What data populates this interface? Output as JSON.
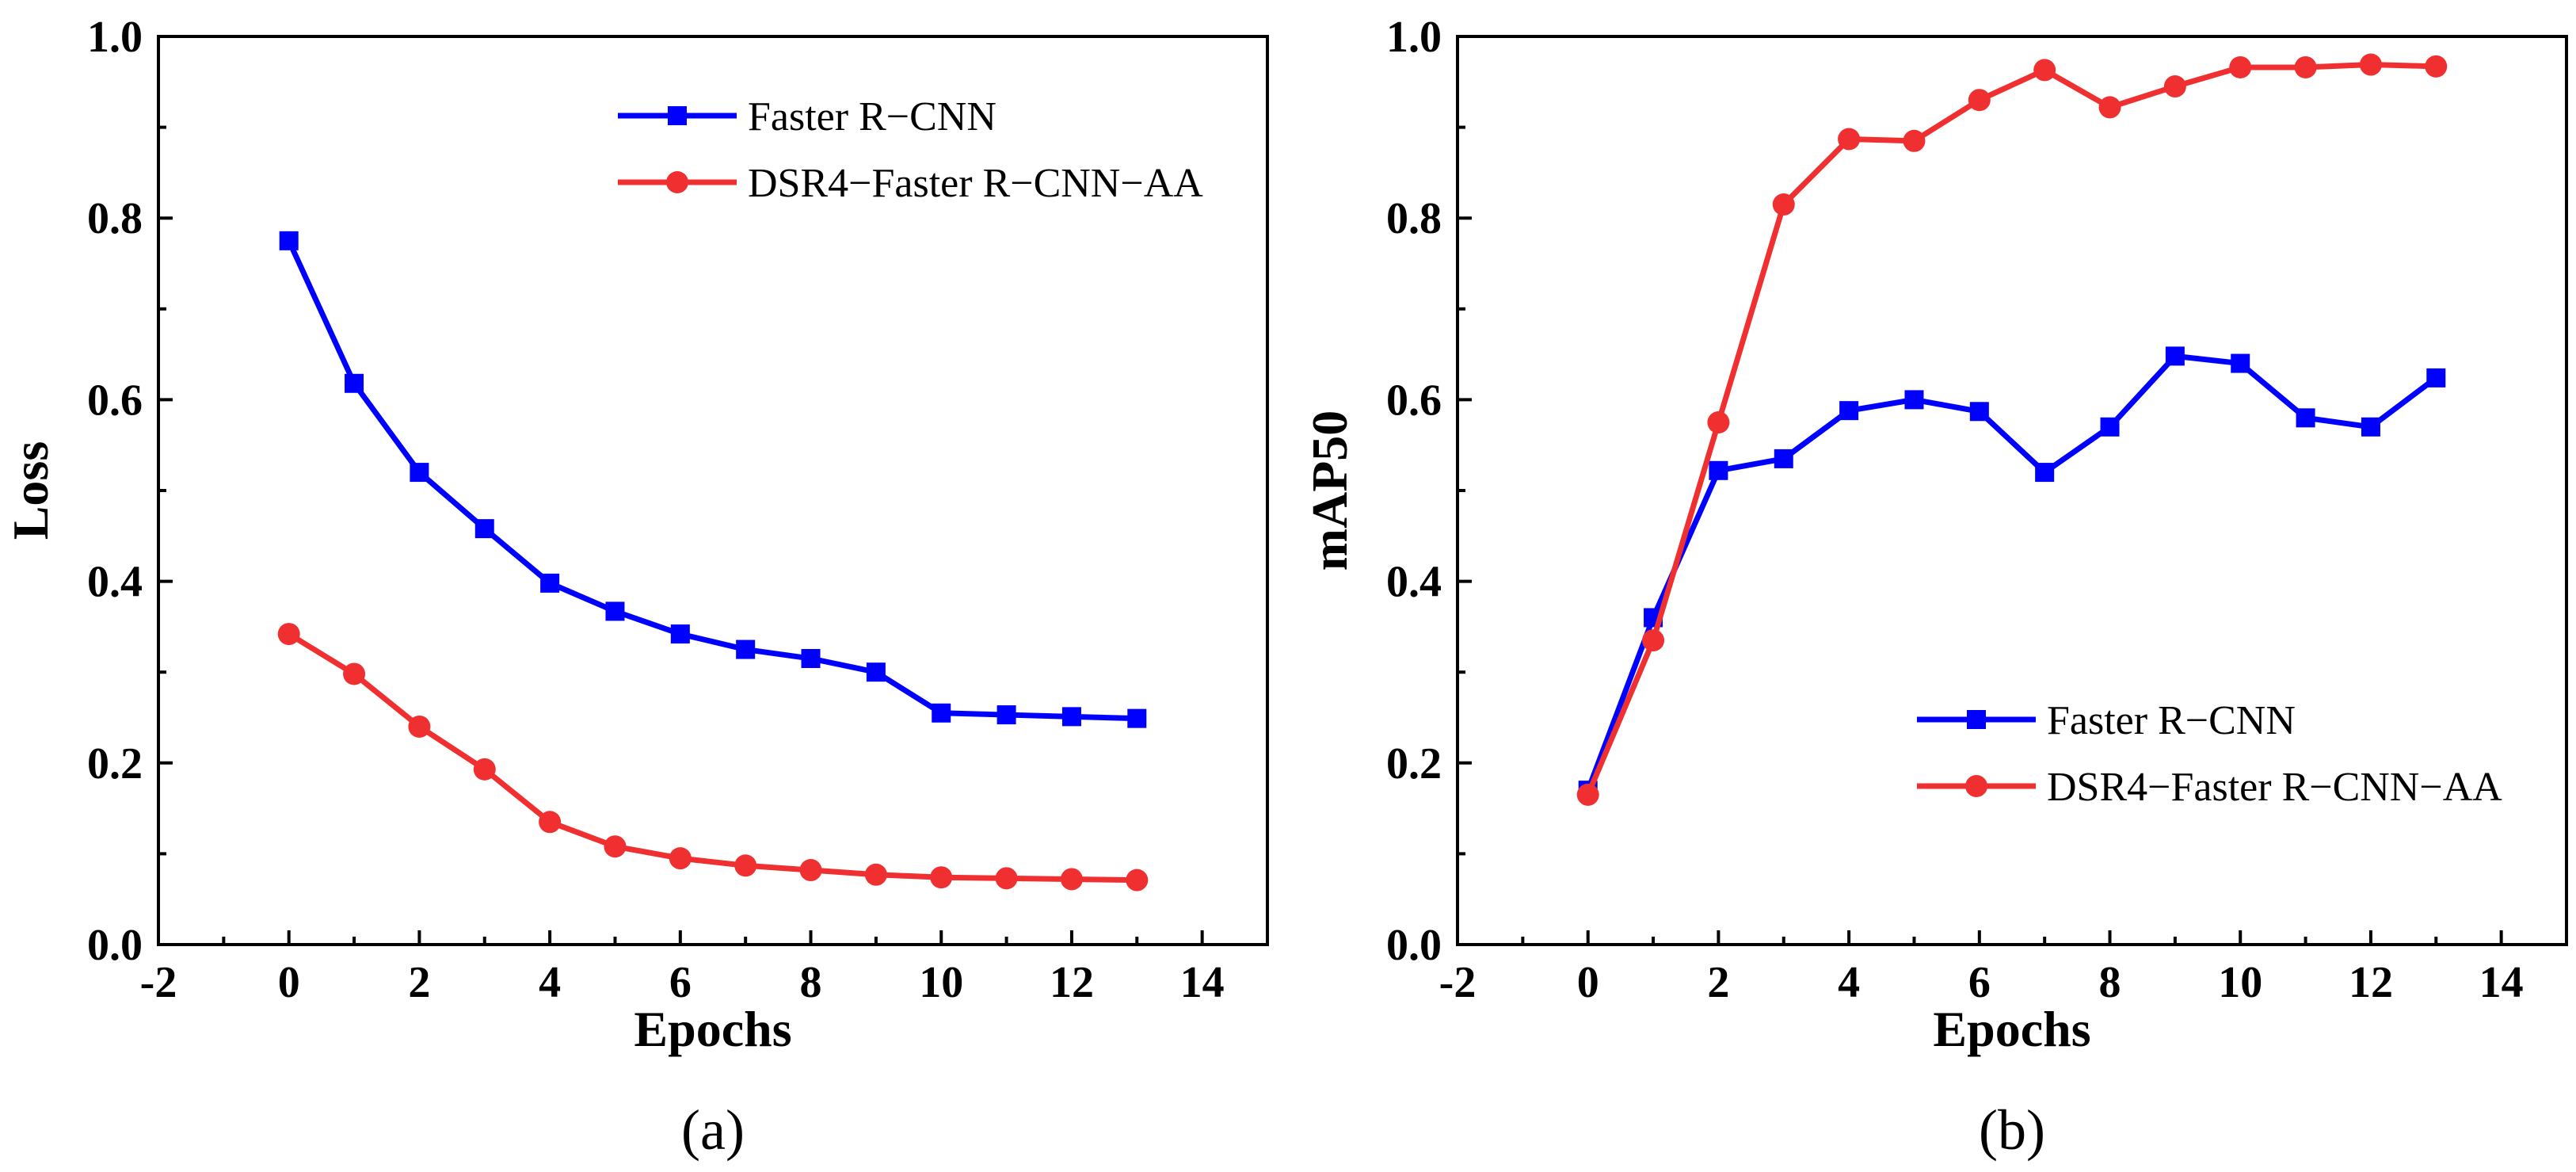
{
  "chart_data": [
    {
      "panel_label": "(a)",
      "type": "line",
      "xlabel": "Epochs",
      "ylabel": "Loss",
      "xlim": [
        -2,
        15
      ],
      "ylim": [
        0.0,
        1.0
      ],
      "xticks": [
        -2,
        0,
        2,
        4,
        6,
        8,
        10,
        12,
        14
      ],
      "yticks": [
        "0.0",
        "0.2",
        "0.4",
        "0.6",
        "0.8",
        "1.0"
      ],
      "legend_position": "top-right",
      "x": [
        0,
        1,
        2,
        3,
        4,
        5,
        6,
        7,
        8,
        9,
        10,
        11,
        12,
        13
      ],
      "series": [
        {
          "name": "Faster R−CNN",
          "color": "#0000ff",
          "marker": "square",
          "values": [
            0.775,
            0.618,
            0.52,
            0.458,
            0.398,
            0.367,
            0.342,
            0.325,
            0.315,
            0.3,
            0.255,
            0.253,
            0.251,
            0.249
          ]
        },
        {
          "name": "DSR4−Faster R−CNN−AA",
          "color": "#f03030",
          "marker": "circle",
          "values": [
            0.342,
            0.298,
            0.24,
            0.193,
            0.135,
            0.108,
            0.095,
            0.087,
            0.082,
            0.077,
            0.074,
            0.073,
            0.072,
            0.071
          ]
        }
      ]
    },
    {
      "panel_label": "(b)",
      "type": "line",
      "xlabel": "Epochs",
      "ylabel": "mAP50",
      "xlim": [
        -2,
        15
      ],
      "ylim": [
        0.0,
        1.0
      ],
      "xticks": [
        -2,
        0,
        2,
        4,
        6,
        8,
        10,
        12,
        14
      ],
      "yticks": [
        "0.0",
        "0.2",
        "0.4",
        "0.6",
        "0.8",
        "1.0"
      ],
      "legend_position": "bottom-right",
      "x": [
        0,
        1,
        2,
        3,
        4,
        5,
        6,
        7,
        8,
        9,
        10,
        11,
        12,
        13
      ],
      "series": [
        {
          "name": "Faster R−CNN",
          "color": "#0000ff",
          "marker": "square",
          "values": [
            0.17,
            0.36,
            0.522,
            0.535,
            0.588,
            0.6,
            0.587,
            0.52,
            0.57,
            0.648,
            0.64,
            0.58,
            0.57,
            0.624
          ]
        },
        {
          "name": "DSR4−Faster R−CNN−AA",
          "color": "#f03030",
          "marker": "circle",
          "values": [
            0.165,
            0.335,
            0.575,
            0.815,
            0.887,
            0.885,
            0.93,
            0.963,
            0.922,
            0.945,
            0.966,
            0.966,
            0.969,
            0.967
          ]
        }
      ]
    }
  ]
}
